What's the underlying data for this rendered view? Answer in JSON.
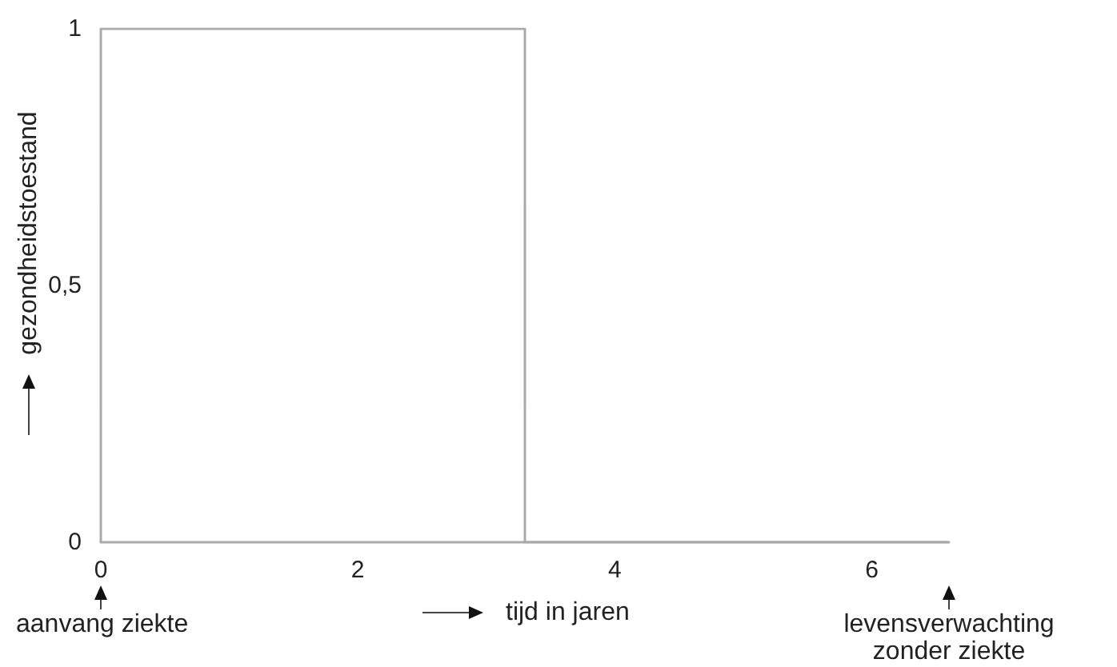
{
  "chart_data": {
    "type": "line",
    "xlabel": "tijd in jaren",
    "ylabel": "gezondheidstoestand",
    "x": [
      0,
      0,
      3.3,
      3.3,
      6.6
    ],
    "series": [
      {
        "color": "#aaaaaa",
        "values": [
          0,
          1,
          1,
          0,
          0
        ]
      }
    ],
    "xlim": [
      0,
      6.6
    ],
    "ylim": [
      0,
      1
    ],
    "xticks": [
      0,
      2,
      4,
      6
    ],
    "yticks": [
      0,
      {
        "value": 0.5,
        "label": "0,5"
      },
      1
    ],
    "grid": false,
    "marker": "none",
    "line_style": "solid",
    "annotations": [
      "aanvang ziekte",
      "levensverwachting\nzonder ziekte"
    ]
  }
}
